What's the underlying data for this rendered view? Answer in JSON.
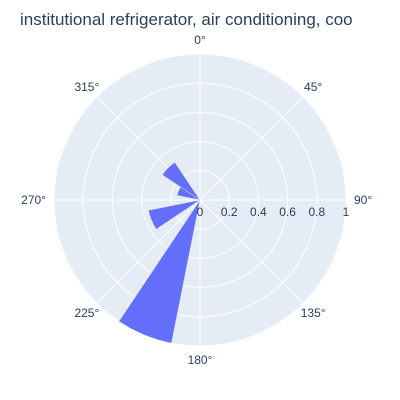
{
  "chart_data": {
    "type": "barpolar",
    "title": "institutional refrigerator, air conditioning, coo",
    "angular_ticks": [
      "0°",
      "45°",
      "90°",
      "135°",
      "180°",
      "225°",
      "270°",
      "315°"
    ],
    "radial_ticks": [
      "0",
      "0.2",
      "0.4",
      "0.6",
      "0.8",
      "1"
    ],
    "radial_range": [
      0,
      1
    ],
    "angular_unit": "degrees",
    "rotation": "clockwise from top",
    "series": [
      {
        "bars": [
          {
            "theta": 315,
            "r": 0.31
          },
          {
            "theta": 292.5,
            "r": 0.16
          },
          {
            "theta": 247.5,
            "r": 0.36
          },
          {
            "theta": 202.5,
            "r": 1.0
          }
        ]
      }
    ],
    "bar_width_deg": 22.5,
    "colors": {
      "bar": "#636efa",
      "polar_bg": "#e5ecf6",
      "grid": "#ffffff",
      "text": "#2a3f5f"
    },
    "grid": true
  }
}
